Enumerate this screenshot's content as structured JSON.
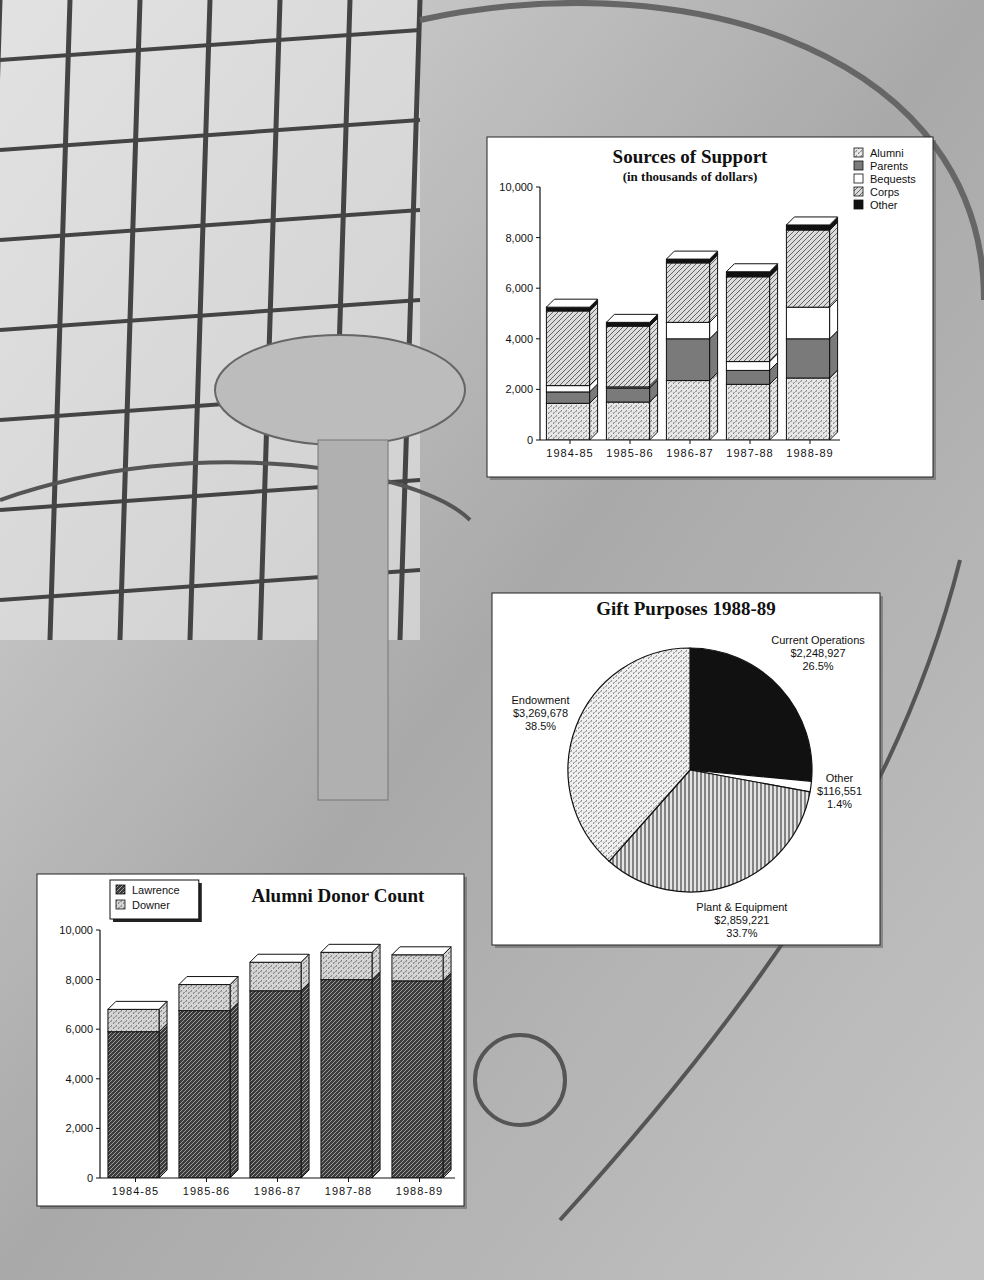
{
  "chart_data": [
    {
      "type": "bar",
      "stacked": true,
      "title": "Sources of Support",
      "subtitle": "(in thousands of dollars)",
      "categories": [
        "1984-85",
        "1985-86",
        "1986-87",
        "1987-88",
        "1988-89"
      ],
      "series": [
        {
          "name": "Alumni",
          "color": "#e6e6e6",
          "values": [
            1450,
            1500,
            2350,
            2200,
            2450
          ]
        },
        {
          "name": "Parents",
          "color": "#7a7a7a",
          "values": [
            450,
            550,
            1650,
            550,
            1550
          ]
        },
        {
          "name": "Bequests",
          "color": "#ffffff",
          "values": [
            250,
            50,
            650,
            350,
            1250
          ]
        },
        {
          "name": "Corps",
          "color": "#dcdcdc",
          "values": [
            2950,
            2400,
            2350,
            3350,
            3050
          ]
        },
        {
          "name": "Other",
          "color": "#111111",
          "values": [
            150,
            150,
            150,
            200,
            200
          ]
        }
      ],
      "ylim": [
        0,
        10000
      ],
      "yticks": [
        0,
        {
          "value": 2000,
          "label": "2,000"
        },
        {
          "value": 4000,
          "label": "4,000"
        },
        {
          "value": 6000,
          "label": "6,000"
        },
        {
          "value": 8000,
          "label": "8,000"
        },
        {
          "value": 10000,
          "label": "10,000"
        }
      ],
      "grid": false,
      "legend": "top-right"
    },
    {
      "type": "pie",
      "title": "Gift Purposes 1988-89",
      "categories": [
        "Current Operations",
        "Other",
        "Plant & Equipment",
        "Endowment"
      ],
      "values": [
        26.5,
        1.4,
        33.7,
        38.5
      ],
      "value_labels": [
        "26.5%",
        "1.4%",
        "33.7%",
        "38.5%"
      ],
      "amounts": [
        2248927,
        116551,
        2859221,
        3269678
      ],
      "amount_labels": [
        "$2,248,927",
        "$116,551",
        "$2,859,221",
        "$3,269,678"
      ],
      "colors": [
        "#111111",
        "#ffffff",
        "#e4e4e4",
        "#efefef"
      ],
      "data_labels": true
    },
    {
      "type": "bar",
      "stacked": true,
      "title": "Alumni Donor Count",
      "categories": [
        "1984-85",
        "1985-86",
        "1986-87",
        "1987-88",
        "1988-89"
      ],
      "series": [
        {
          "name": "Lawrence",
          "color": "#3c3c3c",
          "values": [
            5900,
            6750,
            7550,
            8000,
            7950
          ]
        },
        {
          "name": "Downer",
          "color": "#d4d4d4",
          "values": [
            900,
            1050,
            1150,
            1100,
            1050
          ]
        }
      ],
      "ylim": [
        0,
        10000
      ],
      "yticks": [
        0,
        {
          "value": 2000,
          "label": "2,000"
        },
        {
          "value": 4000,
          "label": "4,000"
        },
        {
          "value": 6000,
          "label": "6,000"
        },
        {
          "value": 8000,
          "label": "8,000"
        },
        {
          "value": 10000,
          "label": "10,000"
        }
      ],
      "grid": false,
      "legend": "top-left"
    }
  ]
}
